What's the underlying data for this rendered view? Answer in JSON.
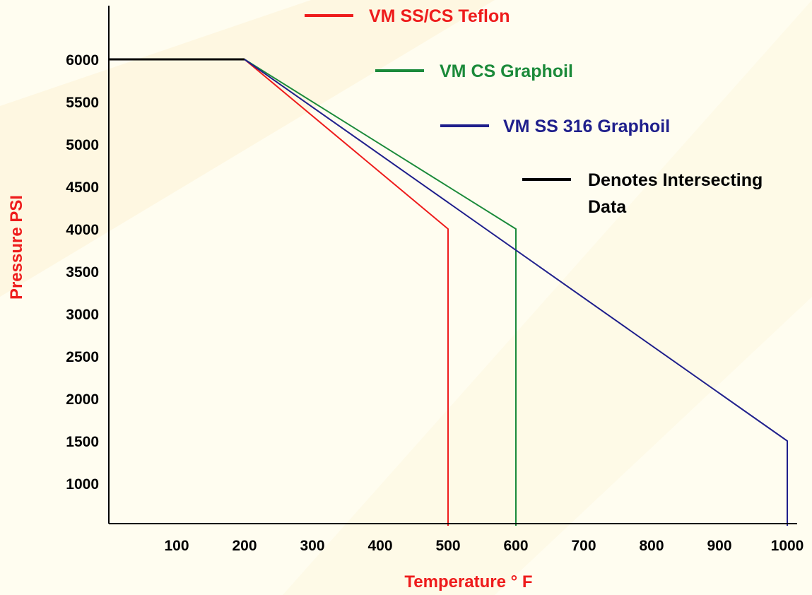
{
  "colors": {
    "background": "#fffdf0",
    "watermark": "#fdf3d6",
    "axis_title": "#ee1c1c",
    "legend_black": "#000000"
  },
  "chart_data": {
    "type": "line",
    "title": "",
    "xlabel": "Temperature ° F",
    "ylabel": "Pressure PSI",
    "xlim": [
      0,
      1000
    ],
    "ylim": [
      500,
      6500
    ],
    "x_ticks": [
      100,
      200,
      300,
      400,
      500,
      600,
      700,
      800,
      900,
      1000
    ],
    "y_ticks": [
      1000,
      1500,
      2000,
      2500,
      3000,
      3500,
      4000,
      4500,
      5000,
      5500,
      6000
    ],
    "grid": false,
    "legend_position": "top-right",
    "series": [
      {
        "name": "VM SS/CS Teflon",
        "color": "#ee1c1c",
        "x": [
          200,
          500,
          500
        ],
        "y": [
          6000,
          4000,
          500
        ]
      },
      {
        "name": "VM CS Graphoil",
        "color": "#1b8a3a",
        "x": [
          200,
          600,
          600
        ],
        "y": [
          6000,
          4000,
          500
        ]
      },
      {
        "name": "VM SS 316 Graphoil",
        "color": "#1f1f8c",
        "x": [
          200,
          1000,
          1000
        ],
        "y": [
          6000,
          1500,
          500
        ]
      },
      {
        "name": "Denotes Intersecting Data",
        "color": "#000000",
        "x": [
          0,
          200
        ],
        "y": [
          6000,
          6000
        ]
      }
    ],
    "legend": [
      {
        "label": "VM SS/CS Teflon",
        "color": "#ee1c1c"
      },
      {
        "label": "VM CS Graphoil",
        "color": "#1b8a3a"
      },
      {
        "label": "VM SS 316 Graphoil",
        "color": "#1f1f8c"
      },
      {
        "label_lines": [
          "Denotes Intersecting",
          "Data"
        ],
        "color": "#000000"
      }
    ]
  }
}
